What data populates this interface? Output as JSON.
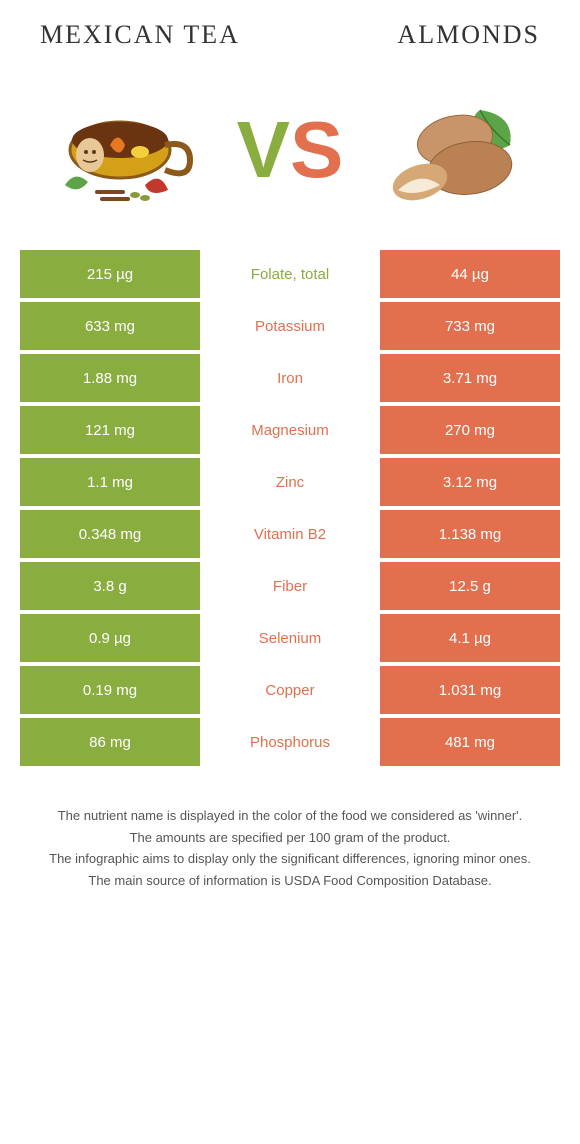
{
  "left_title": "Mexican tea",
  "right_title": "Almonds",
  "colors": {
    "left": "#8aad3f",
    "right": "#e2704f",
    "text": "#333333",
    "footnote": "#555555",
    "bg": "#ffffff"
  },
  "rows": [
    {
      "left": "215 µg",
      "label": "Folate, total",
      "right": "44 µg",
      "winner": "left"
    },
    {
      "left": "633 mg",
      "label": "Potassium",
      "right": "733 mg",
      "winner": "right"
    },
    {
      "left": "1.88 mg",
      "label": "Iron",
      "right": "3.71 mg",
      "winner": "right"
    },
    {
      "left": "121 mg",
      "label": "Magnesium",
      "right": "270 mg",
      "winner": "right"
    },
    {
      "left": "1.1 mg",
      "label": "Zinc",
      "right": "3.12 mg",
      "winner": "right"
    },
    {
      "left": "0.348 mg",
      "label": "Vitamin B2",
      "right": "1.138 mg",
      "winner": "right"
    },
    {
      "left": "3.8 g",
      "label": "Fiber",
      "right": "12.5 g",
      "winner": "right"
    },
    {
      "left": "0.9 µg",
      "label": "Selenium",
      "right": "4.1 µg",
      "winner": "right"
    },
    {
      "left": "0.19 mg",
      "label": "Copper",
      "right": "1.031 mg",
      "winner": "right"
    },
    {
      "left": "86 mg",
      "label": "Phosphorus",
      "right": "481 mg",
      "winner": "right"
    }
  ],
  "footnotes": [
    "The nutrient name is displayed in the color of the food we considered as 'winner'.",
    "The amounts are specified per 100 gram of the product.",
    "The infographic aims to display only the significant differences, ignoring minor ones.",
    "The main source of information is USDA Food Composition Database."
  ]
}
